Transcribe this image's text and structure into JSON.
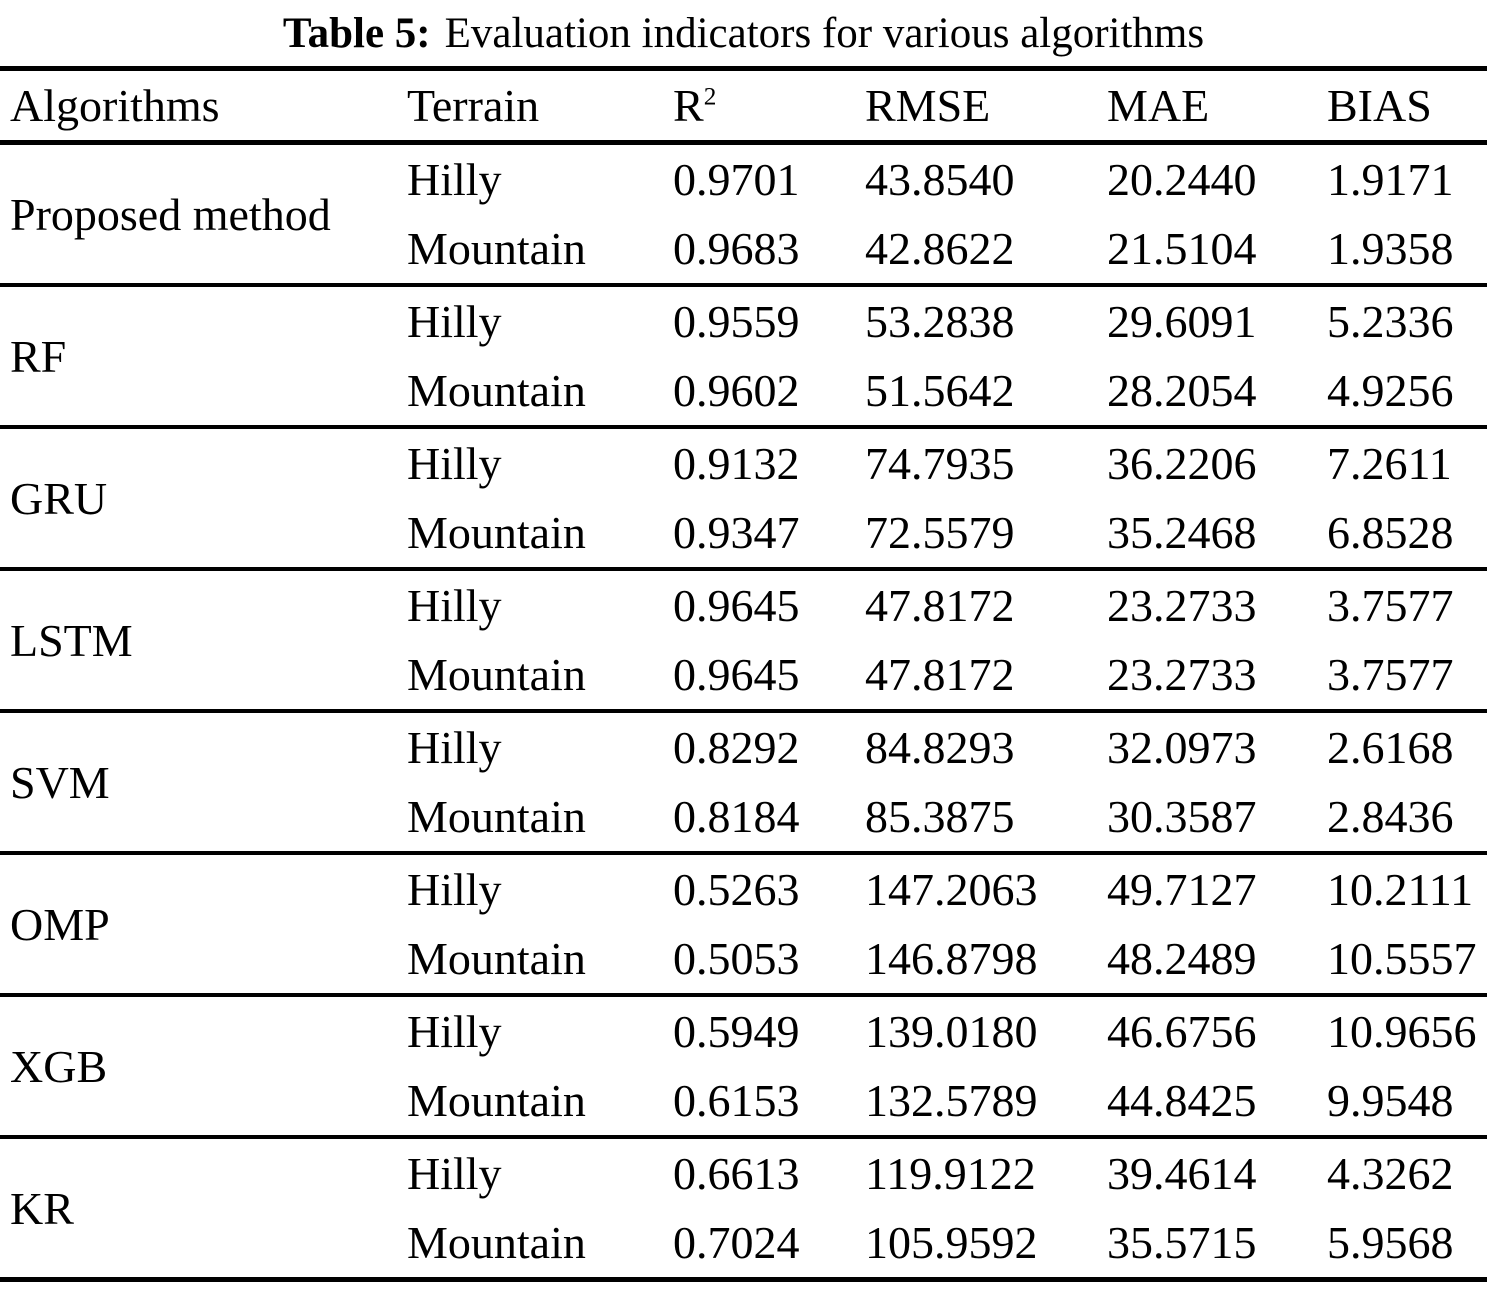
{
  "title": {
    "label": "Table 5:",
    "text": "Evaluation indicators for various algorithms"
  },
  "colors": {
    "text": "#000000",
    "background": "#ffffff",
    "rule": "#000000"
  },
  "table": {
    "headers": {
      "algorithms": "Algorithms",
      "terrain": "Terrain",
      "r2_base": "R",
      "r2_sup": "2",
      "rmse": "RMSE",
      "mae": "MAE",
      "bias": "BIAS"
    },
    "groups": [
      {
        "algorithm": "Proposed method",
        "rows": [
          {
            "terrain": "Hilly",
            "r2": "0.9701",
            "rmse": "43.8540",
            "mae": "20.2440",
            "bias": "1.9171"
          },
          {
            "terrain": "Mountain",
            "r2": "0.9683",
            "rmse": "42.8622",
            "mae": "21.5104",
            "bias": "1.9358"
          }
        ]
      },
      {
        "algorithm": "RF",
        "rows": [
          {
            "terrain": "Hilly",
            "r2": "0.9559",
            "rmse": "53.2838",
            "mae": "29.6091",
            "bias": "5.2336"
          },
          {
            "terrain": "Mountain",
            "r2": "0.9602",
            "rmse": "51.5642",
            "mae": "28.2054",
            "bias": "4.9256"
          }
        ]
      },
      {
        "algorithm": "GRU",
        "rows": [
          {
            "terrain": "Hilly",
            "r2": "0.9132",
            "rmse": "74.7935",
            "mae": "36.2206",
            "bias": "7.2611"
          },
          {
            "terrain": "Mountain",
            "r2": "0.9347",
            "rmse": "72.5579",
            "mae": "35.2468",
            "bias": "6.8528"
          }
        ]
      },
      {
        "algorithm": "LSTM",
        "rows": [
          {
            "terrain": "Hilly",
            "r2": "0.9645",
            "rmse": "47.8172",
            "mae": "23.2733",
            "bias": "3.7577"
          },
          {
            "terrain": "Mountain",
            "r2": "0.9645",
            "rmse": "47.8172",
            "mae": "23.2733",
            "bias": "3.7577"
          }
        ]
      },
      {
        "algorithm": "SVM",
        "rows": [
          {
            "terrain": "Hilly",
            "r2": "0.8292",
            "rmse": "84.8293",
            "mae": "32.0973",
            "bias": "2.6168"
          },
          {
            "terrain": "Mountain",
            "r2": "0.8184",
            "rmse": "85.3875",
            "mae": "30.3587",
            "bias": "2.8436"
          }
        ]
      },
      {
        "algorithm": "OMP",
        "rows": [
          {
            "terrain": "Hilly",
            "r2": "0.5263",
            "rmse": "147.2063",
            "mae": "49.7127",
            "bias": "10.2111"
          },
          {
            "terrain": "Mountain",
            "r2": "0.5053",
            "rmse": "146.8798",
            "mae": "48.2489",
            "bias": "10.5557"
          }
        ]
      },
      {
        "algorithm": "XGB",
        "rows": [
          {
            "terrain": "Hilly",
            "r2": "0.5949",
            "rmse": "139.0180",
            "mae": "46.6756",
            "bias": "10.9656"
          },
          {
            "terrain": "Mountain",
            "r2": "0.6153",
            "rmse": "132.5789",
            "mae": "44.8425",
            "bias": "9.9548"
          }
        ]
      },
      {
        "algorithm": "KR",
        "rows": [
          {
            "terrain": "Hilly",
            "r2": "0.6613",
            "rmse": "119.9122",
            "mae": "39.4614",
            "bias": "4.3262"
          },
          {
            "terrain": "Mountain",
            "r2": "0.7024",
            "rmse": "105.9592",
            "mae": "35.5715",
            "bias": "5.9568"
          }
        ]
      }
    ]
  }
}
